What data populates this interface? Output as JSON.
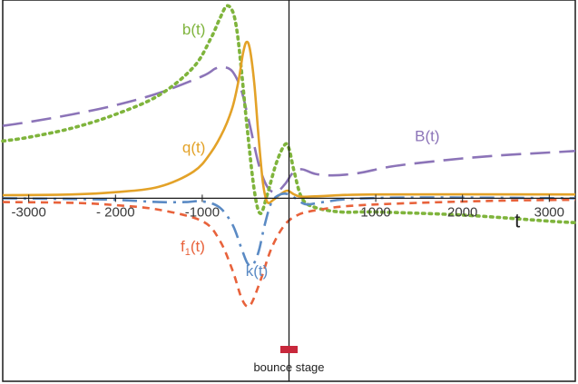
{
  "chart_data": {
    "type": "line",
    "title": "",
    "xlabel": "t",
    "ylabel": "",
    "xlim": [
      -3300,
      3300
    ],
    "ylim": [
      -2.4,
      2.6
    ],
    "grid": false,
    "legend": "none",
    "x_ticks": [
      {
        "value": -3000,
        "label": "-3000"
      },
      {
        "value": -2000,
        "label": "- 2000"
      },
      {
        "value": -1000,
        "label": "-1000"
      },
      {
        "value": 1000,
        "label": "1000"
      },
      {
        "value": 2000,
        "label": "2000"
      },
      {
        "value": 3000,
        "label": "3000"
      }
    ],
    "series": [
      {
        "key": "B",
        "label": "B(t)",
        "label_at": [
          1450,
          0.75
        ],
        "color": "#8c74b8",
        "style": "long-dash",
        "points": [
          [
            -3300,
            0.95
          ],
          [
            -3000,
            1.0
          ],
          [
            -2500,
            1.1
          ],
          [
            -2000,
            1.22
          ],
          [
            -1500,
            1.38
          ],
          [
            -1000,
            1.6
          ],
          [
            -850,
            1.7
          ],
          [
            -750,
            1.72
          ],
          [
            -650,
            1.66
          ],
          [
            -550,
            1.42
          ],
          [
            -450,
            0.95
          ],
          [
            -350,
            0.45
          ],
          [
            -250,
            0.15
          ],
          [
            -150,
            0.08
          ],
          [
            -50,
            0.18
          ],
          [
            50,
            0.34
          ],
          [
            150,
            0.38
          ],
          [
            300,
            0.32
          ],
          [
            500,
            0.3
          ],
          [
            800,
            0.33
          ],
          [
            1200,
            0.42
          ],
          [
            1800,
            0.5
          ],
          [
            2400,
            0.56
          ],
          [
            3000,
            0.6
          ],
          [
            3300,
            0.62
          ]
        ]
      },
      {
        "key": "b",
        "label": "b(t)",
        "label_at": [
          -1230,
          2.15
        ],
        "color": "#7fb43c",
        "style": "dotted",
        "points": [
          [
            -3300,
            0.75
          ],
          [
            -3000,
            0.8
          ],
          [
            -2500,
            0.92
          ],
          [
            -2000,
            1.1
          ],
          [
            -1500,
            1.35
          ],
          [
            -1100,
            1.72
          ],
          [
            -900,
            2.1
          ],
          [
            -800,
            2.35
          ],
          [
            -720,
            2.52
          ],
          [
            -650,
            2.45
          ],
          [
            -600,
            2.2
          ],
          [
            -550,
            1.7
          ],
          [
            -480,
            0.9
          ],
          [
            -400,
            0.1
          ],
          [
            -330,
            -0.2
          ],
          [
            -250,
            0.05
          ],
          [
            -150,
            0.45
          ],
          [
            -50,
            0.7
          ],
          [
            0,
            0.65
          ],
          [
            60,
            0.35
          ],
          [
            150,
            0.0
          ],
          [
            300,
            -0.12
          ],
          [
            600,
            -0.18
          ],
          [
            1000,
            -0.18
          ],
          [
            2000,
            -0.22
          ],
          [
            3000,
            -0.3
          ],
          [
            3300,
            -0.32
          ]
        ]
      },
      {
        "key": "q",
        "label": "q(t)",
        "label_at": [
          -1230,
          0.6
        ],
        "color": "#e3a228",
        "style": "solid",
        "points": [
          [
            -3300,
            0.04
          ],
          [
            -2500,
            0.05
          ],
          [
            -2000,
            0.08
          ],
          [
            -1500,
            0.15
          ],
          [
            -1100,
            0.35
          ],
          [
            -900,
            0.6
          ],
          [
            -750,
            0.9
          ],
          [
            -650,
            1.2
          ],
          [
            -580,
            1.55
          ],
          [
            -530,
            1.9
          ],
          [
            -490,
            2.05
          ],
          [
            -450,
            1.95
          ],
          [
            -400,
            1.5
          ],
          [
            -350,
            0.8
          ],
          [
            -300,
            0.2
          ],
          [
            -250,
            -0.05
          ],
          [
            -180,
            -0.02
          ],
          [
            -100,
            0.05
          ],
          [
            -20,
            0.1
          ],
          [
            60,
            0.05
          ],
          [
            150,
            0.02
          ],
          [
            400,
            0.03
          ],
          [
            1000,
            0.05
          ],
          [
            3300,
            0.05
          ]
        ]
      },
      {
        "key": "k",
        "label": "k(t)",
        "label_at": [
          -500,
          -1.02
        ],
        "color": "#5a8ac4",
        "style": "dash-dot",
        "points": [
          [
            -3300,
            0.0
          ],
          [
            -2500,
            -0.01
          ],
          [
            -2000,
            -0.02
          ],
          [
            -1500,
            -0.05
          ],
          [
            -1200,
            -0.05
          ],
          [
            -1000,
            -0.04
          ],
          [
            -800,
            -0.12
          ],
          [
            -650,
            -0.35
          ],
          [
            -550,
            -0.65
          ],
          [
            -480,
            -0.85
          ],
          [
            -420,
            -0.88
          ],
          [
            -350,
            -0.7
          ],
          [
            -280,
            -0.35
          ],
          [
            -200,
            -0.05
          ],
          [
            -100,
            0.05
          ],
          [
            0,
            0.05
          ],
          [
            100,
            -0.02
          ],
          [
            200,
            -0.08
          ],
          [
            400,
            -0.05
          ],
          [
            700,
            -0.01
          ],
          [
            1500,
            0.01
          ],
          [
            3300,
            0.0
          ]
        ]
      },
      {
        "key": "f1",
        "label": "f",
        "label_sub": "1",
        "label_tail": "(t)",
        "label_at": [
          -1250,
          -0.7
        ],
        "color": "#e8623b",
        "style": "dashed",
        "points": [
          [
            -3300,
            -0.05
          ],
          [
            -2500,
            -0.06
          ],
          [
            -2000,
            -0.09
          ],
          [
            -1500,
            -0.15
          ],
          [
            -1000,
            -0.3
          ],
          [
            -800,
            -0.55
          ],
          [
            -650,
            -0.95
          ],
          [
            -550,
            -1.3
          ],
          [
            -480,
            -1.42
          ],
          [
            -420,
            -1.35
          ],
          [
            -320,
            -1.05
          ],
          [
            -200,
            -0.65
          ],
          [
            -50,
            -0.35
          ],
          [
            100,
            -0.22
          ],
          [
            300,
            -0.16
          ],
          [
            700,
            -0.1
          ],
          [
            1500,
            -0.06
          ],
          [
            2500,
            -0.03
          ],
          [
            3300,
            -0.02
          ]
        ]
      }
    ],
    "bounce_marker": {
      "label": "bounce stage",
      "x_range": [
        -100,
        100
      ],
      "color": "#c8283c"
    }
  }
}
